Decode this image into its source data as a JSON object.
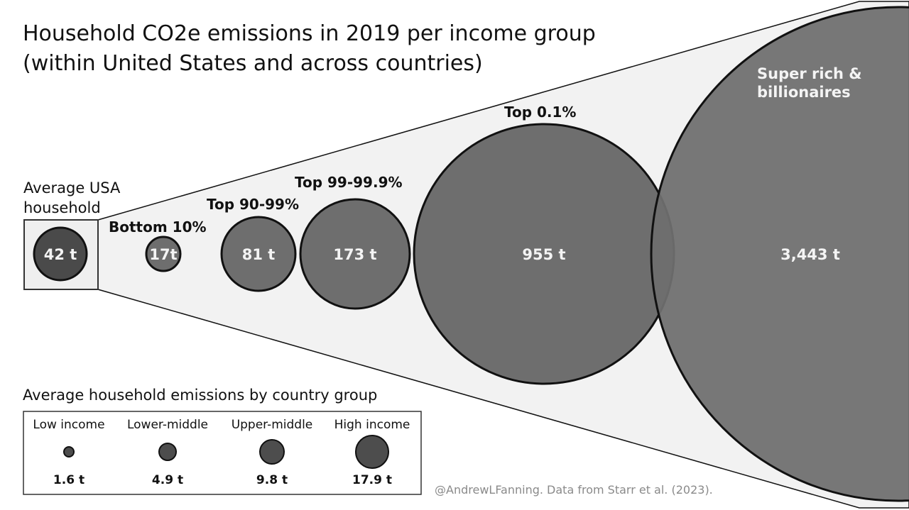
{
  "chart_data": {
    "type": "bubble",
    "title": "Household CO2e emissions in 2019 per income group",
    "subtitle": "(within United States and across countries)",
    "unit": "t",
    "average": {
      "label_line1": "Average USA",
      "label_line2": "household",
      "value": 42,
      "value_label": "42 t"
    },
    "groups": [
      {
        "name": "Bottom 10%",
        "value": 17,
        "value_label": "17t"
      },
      {
        "name": "Top 90-99%",
        "value": 81,
        "value_label": "81 t"
      },
      {
        "name": "Top 99-99.9%",
        "value": 173,
        "value_label": "173 t"
      },
      {
        "name": "Top 0.1%",
        "value": 955,
        "value_label": "955 t"
      },
      {
        "name": "Super rich & billionaires",
        "name_line1": "Super rich &",
        "name_line2": "billionaires",
        "value": 3443,
        "value_label": "3,443 t"
      }
    ],
    "legend": {
      "title": "Average household emissions by country group",
      "items": [
        {
          "name": "Low income",
          "value": 1.6,
          "value_label": "1.6 t"
        },
        {
          "name": "Lower-middle",
          "value": 4.9,
          "value_label": "4.9 t"
        },
        {
          "name": "Upper-middle",
          "value": 9.8,
          "value_label": "9.8 t"
        },
        {
          "name": "High income",
          "value": 17.9,
          "value_label": "17.9 t"
        }
      ]
    },
    "credit": "@AndrewLFanning. Data from Starr et al. (2023).",
    "colors": {
      "average_fill": "#4a4a4a",
      "group_fill": "#6e6e6e",
      "legend_fill": "#4d4d4d",
      "cone_fill": "#f2f2f2",
      "stroke": "#111111",
      "value_text": "#f4f4f4",
      "credit_text": "#8a8a8a"
    }
  }
}
